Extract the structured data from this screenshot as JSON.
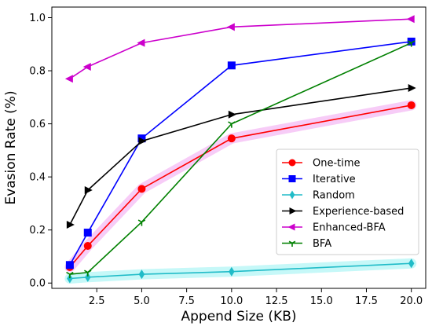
{
  "chart_data": {
    "type": "line",
    "title": "",
    "xlabel": "Append Size (KB)",
    "ylabel": "Evasion Rate (%)",
    "xlim": [
      0.0,
      20.8
    ],
    "ylim": [
      -0.02,
      1.04
    ],
    "xticks": [
      2.5,
      5.0,
      7.5,
      10.0,
      12.5,
      15.0,
      17.5,
      20.0
    ],
    "xtick_labels": [
      "2.5",
      "5.0",
      "7.5",
      "10.0",
      "12.5",
      "15.0",
      "17.5",
      "20.0"
    ],
    "yticks": [
      0.0,
      0.2,
      0.4,
      0.6,
      0.8,
      1.0
    ],
    "ytick_labels": [
      "0.0",
      "0.2",
      "0.4",
      "0.6",
      "0.8",
      "1.0"
    ],
    "grid": false,
    "legend_position": "lower-right",
    "series": [
      {
        "name": "One-time",
        "color": "#ff0000",
        "marker": "circle",
        "x": [
          1,
          2,
          5,
          10,
          20
        ],
        "y": [
          0.06,
          0.14,
          0.355,
          0.545,
          0.67
        ]
      },
      {
        "name": "Iterative",
        "color": "#0000ff",
        "marker": "square",
        "x": [
          1,
          2,
          5,
          10,
          20
        ],
        "y": [
          0.068,
          0.19,
          0.545,
          0.82,
          0.91
        ]
      },
      {
        "name": "Random",
        "color": "#21bcc8",
        "marker": "thin-diamond",
        "x": [
          1,
          2,
          5,
          10,
          20
        ],
        "y": [
          0.017,
          0.022,
          0.033,
          0.043,
          0.074
        ]
      },
      {
        "name": "Experience-based",
        "color": "#000000",
        "marker": "triangle-right",
        "x": [
          1,
          2,
          5,
          10,
          20
        ],
        "y": [
          0.22,
          0.35,
          0.535,
          0.635,
          0.735
        ]
      },
      {
        "name": "Enhanced-BFA",
        "color": "#cc00cc",
        "marker": "triangle-left",
        "x": [
          1,
          2,
          5,
          10,
          20
        ],
        "y": [
          0.77,
          0.815,
          0.905,
          0.965,
          0.995
        ]
      },
      {
        "name": "BFA",
        "color": "#008000",
        "marker": "tri-down",
        "x": [
          1,
          2,
          5,
          10,
          20
        ],
        "y": [
          0.033,
          0.04,
          0.23,
          0.6,
          0.905
        ]
      }
    ],
    "highlights": [
      {
        "series": "One-time",
        "color": "#f4b6f4"
      },
      {
        "series": "Random",
        "color": "#aef5f5"
      }
    ]
  }
}
